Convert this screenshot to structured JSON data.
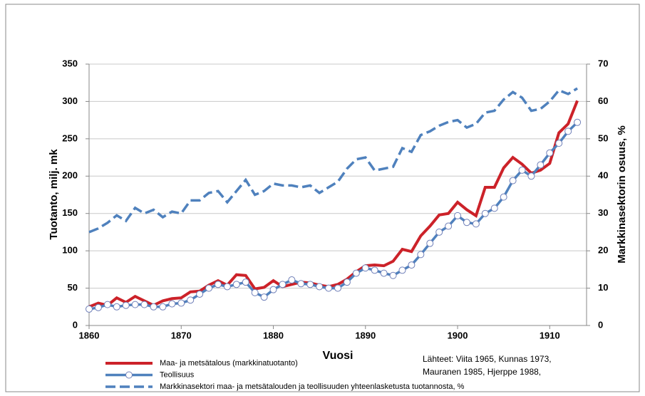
{
  "chart_data": {
    "type": "line",
    "xlabel": "Vuosi",
    "ylabel": "Tuotanto, milj. mk",
    "y2label": "Markkinasektorin osuus, %",
    "annotation": [
      "Lähteet: Viita 1965, Kunnas 1973,",
      "Mauranen 1985, Hjerppe 1988,"
    ],
    "x": [
      1860,
      1861,
      1862,
      1863,
      1864,
      1865,
      1866,
      1867,
      1868,
      1869,
      1870,
      1871,
      1872,
      1873,
      1874,
      1875,
      1876,
      1877,
      1878,
      1879,
      1880,
      1881,
      1882,
      1883,
      1884,
      1885,
      1886,
      1887,
      1888,
      1889,
      1890,
      1891,
      1892,
      1893,
      1894,
      1895,
      1896,
      1897,
      1898,
      1899,
      1900,
      1901,
      1902,
      1903,
      1904,
      1905,
      1906,
      1907,
      1908,
      1909,
      1910,
      1911,
      1912,
      1913
    ],
    "xlim": [
      1860,
      1914
    ],
    "xticks": [
      1860,
      1870,
      1880,
      1890,
      1900,
      1910
    ],
    "ylim": [
      0,
      350
    ],
    "yticks": [
      0,
      50,
      100,
      150,
      200,
      250,
      300,
      350
    ],
    "y2lim": [
      0,
      70
    ],
    "y2ticks": [
      0,
      10,
      20,
      30,
      40,
      50,
      60,
      70
    ],
    "grid": true,
    "series": [
      {
        "name": "Maa- ja metsätalous (markkinatuotanto)",
        "color": "#cc2229",
        "style": "solid",
        "values": [
          25,
          30,
          27,
          37,
          31,
          39,
          33,
          27,
          33,
          36,
          37,
          45,
          46,
          54,
          60,
          54,
          68,
          67,
          49,
          51,
          60,
          52,
          55,
          58,
          57,
          54,
          52,
          55,
          62,
          72,
          80,
          81,
          80,
          86,
          102,
          99,
          120,
          133,
          148,
          150,
          165,
          155,
          147,
          185,
          185,
          211,
          225,
          216,
          204,
          208,
          217,
          258,
          270,
          301
        ]
      },
      {
        "name": "Teollisuus",
        "color": "#4f81bd",
        "style": "marker",
        "values": [
          22,
          24,
          28,
          25,
          27,
          28,
          28,
          25,
          25,
          29,
          30,
          34,
          42,
          50,
          55,
          52,
          55,
          58,
          44,
          38,
          48,
          55,
          61,
          56,
          55,
          52,
          50,
          50,
          58,
          70,
          77,
          74,
          70,
          67,
          74,
          81,
          95,
          110,
          125,
          133,
          147,
          138,
          136,
          150,
          157,
          172,
          194,
          208,
          200,
          215,
          231,
          244,
          260,
          272
        ]
      },
      {
        "name": "Markkinasektori maa- ja metsätalouden ja teollisuuden  yhteenlasketusta tuotannosta, %",
        "color": "#4f81bd",
        "style": "dashed",
        "axis": "y2",
        "values": [
          25,
          26,
          27.5,
          29.5,
          28,
          31.5,
          30,
          31,
          29,
          30.5,
          30,
          33.5,
          33.5,
          35.5,
          36,
          33,
          36,
          39,
          35,
          36,
          38,
          37.5,
          37.5,
          37,
          37.5,
          35.5,
          37,
          38.5,
          42,
          44.5,
          45,
          41.5,
          42,
          42.5,
          47.5,
          46.5,
          51,
          52,
          53.5,
          54.5,
          55,
          53,
          54,
          57,
          57.5,
          60.5,
          62.5,
          61,
          57.5,
          58,
          60,
          63,
          62,
          63.5
        ]
      }
    ]
  }
}
